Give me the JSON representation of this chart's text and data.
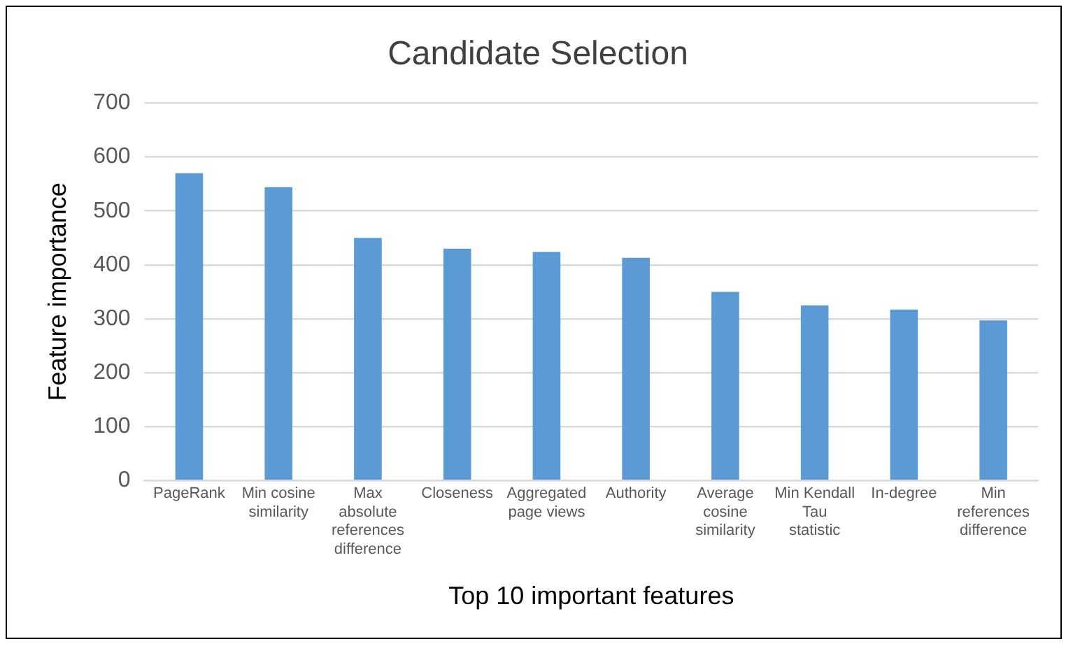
{
  "chart_data": {
    "type": "bar",
    "title": "Candidate Selection",
    "xlabel": "Top 10 important features",
    "ylabel": "Feature importance",
    "categories": [
      "PageRank",
      "Min cosine similarity",
      "Max absolute references difference",
      "Closeness",
      "Aggregated page views",
      "Authority",
      "Average cosine similarity",
      "Min Kendall Tau statistic",
      "In-degree",
      "Min references difference"
    ],
    "values": [
      570,
      544,
      450,
      430,
      424,
      413,
      350,
      325,
      317,
      297
    ],
    "color": "#5b9bd5",
    "ylim": [
      0,
      700
    ],
    "yticks": [
      0,
      100,
      200,
      300,
      400,
      500,
      600,
      700
    ],
    "grid": "y",
    "legend": false
  }
}
